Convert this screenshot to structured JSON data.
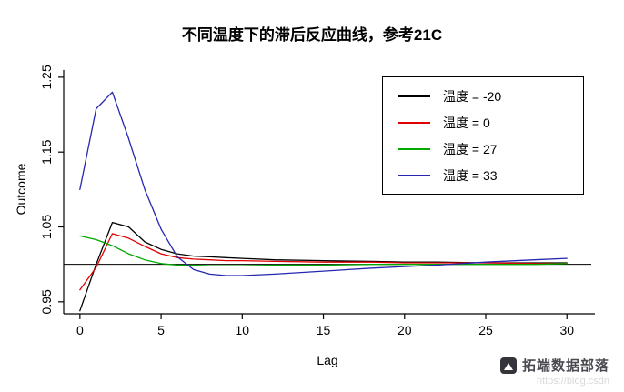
{
  "title": "不同温度下的滞后反应曲线，参考21C",
  "chart_data": {
    "type": "line",
    "title": "不同温度下的滞后反应曲线，参考21C",
    "xlabel": "Lag",
    "ylabel": "Outcome",
    "x": [
      0,
      1,
      2,
      3,
      4,
      5,
      6,
      7,
      8,
      9,
      10,
      12,
      15,
      18,
      20,
      22,
      25,
      28,
      30
    ],
    "series": [
      {
        "name": "温度 = -20",
        "color": "#000000",
        "values": [
          0.938,
          1.0,
          1.056,
          1.05,
          1.03,
          1.02,
          1.014,
          1.011,
          1.01,
          1.009,
          1.008,
          1.006,
          1.005,
          1.004,
          1.003,
          1.003,
          1.002,
          1.002,
          1.002
        ]
      },
      {
        "name": "温度 = 0",
        "color": "#e00000",
        "values": [
          0.966,
          0.996,
          1.041,
          1.035,
          1.024,
          1.014,
          1.009,
          1.007,
          1.006,
          1.005,
          1.005,
          1.004,
          1.003,
          1.003,
          1.002,
          1.002,
          1.002,
          1.001,
          1.001
        ]
      },
      {
        "name": "温度 = 27",
        "color": "#00a800",
        "values": [
          1.038,
          1.033,
          1.025,
          1.014,
          1.006,
          1.001,
          0.999,
          0.999,
          0.998,
          0.998,
          0.998,
          0.999,
          0.999,
          1.0,
          1.0,
          1.0,
          1.0,
          1.0,
          1.001
        ]
      },
      {
        "name": "温度 = 33",
        "color": "#2626b0",
        "values": [
          1.1,
          1.208,
          1.23,
          1.168,
          1.1,
          1.047,
          1.01,
          0.993,
          0.987,
          0.985,
          0.985,
          0.987,
          0.991,
          0.995,
          0.997,
          0.999,
          1.003,
          1.006,
          1.008
        ]
      }
    ],
    "x_ticks": [
      0,
      5,
      10,
      15,
      20,
      25,
      30
    ],
    "y_ticks": [
      0.95,
      1.05,
      1.15,
      1.25
    ],
    "xlim": [
      -1,
      31.5
    ],
    "ylim": [
      0.934,
      1.262
    ],
    "reference_line_y": 1.0,
    "legend_position": "top-right",
    "grid": false
  },
  "watermark": {
    "brand": "拓端数据部落",
    "url_text": "https://blog.csdn"
  }
}
